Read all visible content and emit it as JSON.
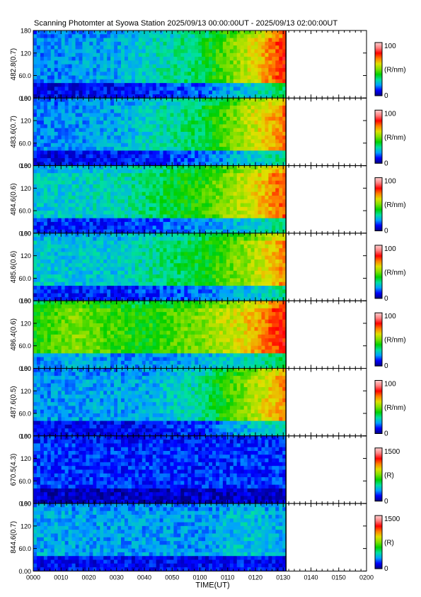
{
  "title": "Scanning Photomter at Syowa Station 2025/09/13 00:00:00UT - 2025/09/13 02:00:00UT",
  "chart_data": {
    "type": "heatmap",
    "xlabel": "TIME(UT)",
    "x_ticklabels": [
      "0000",
      "0010",
      "0020",
      "0030",
      "0040",
      "0050",
      "0100",
      "0110",
      "0120",
      "0130",
      "0140",
      "0150",
      "0200"
    ],
    "xlim_minutes": [
      0,
      120
    ],
    "data_end_minute": 91,
    "y_ticklabels": [
      "0.00",
      "60.0",
      "120",
      "180"
    ],
    "ylim": [
      0,
      180
    ],
    "colormap": [
      "#000080",
      "#0000ff",
      "#00a0ff",
      "#00e0a0",
      "#00d000",
      "#80e000",
      "#e0e000",
      "#ff8000",
      "#ff0000",
      "#ff8080",
      "#ffd0d0"
    ],
    "panels": [
      {
        "label": "482.8(0.7)",
        "unit": "(R/nm)",
        "cmax": "100",
        "cmin": "0",
        "intensity": [
          {
            "t": 0,
            "v": 0.18
          },
          {
            "t": 30,
            "v": 0.22
          },
          {
            "t": 60,
            "v": 0.35
          },
          {
            "t": 80,
            "v": 0.6
          },
          {
            "t": 91,
            "v": 0.8
          }
        ]
      },
      {
        "label": "483.6(0.7)",
        "unit": "(R/nm)",
        "cmax": "100",
        "cmin": "0",
        "intensity": [
          {
            "t": 0,
            "v": 0.18
          },
          {
            "t": 30,
            "v": 0.22
          },
          {
            "t": 60,
            "v": 0.35
          },
          {
            "t": 80,
            "v": 0.58
          },
          {
            "t": 91,
            "v": 0.72
          }
        ]
      },
      {
        "label": "484.6(0.6)",
        "unit": "(R/nm)",
        "cmax": "100",
        "cmin": "0",
        "intensity": [
          {
            "t": 0,
            "v": 0.25
          },
          {
            "t": 30,
            "v": 0.28
          },
          {
            "t": 60,
            "v": 0.42
          },
          {
            "t": 80,
            "v": 0.6
          },
          {
            "t": 91,
            "v": 0.75
          }
        ]
      },
      {
        "label": "485.6(0.6)",
        "unit": "(R/nm)",
        "cmax": "100",
        "cmin": "0",
        "intensity": [
          {
            "t": 0,
            "v": 0.25
          },
          {
            "t": 30,
            "v": 0.25
          },
          {
            "t": 60,
            "v": 0.38
          },
          {
            "t": 80,
            "v": 0.55
          },
          {
            "t": 91,
            "v": 0.7
          }
        ]
      },
      {
        "label": "486.4(0.6)",
        "unit": "(R/nm)",
        "cmax": "100",
        "cmin": "0",
        "intensity": [
          {
            "t": 0,
            "v": 0.4
          },
          {
            "t": 15,
            "v": 0.5
          },
          {
            "t": 40,
            "v": 0.4
          },
          {
            "t": 60,
            "v": 0.5
          },
          {
            "t": 75,
            "v": 0.6
          },
          {
            "t": 91,
            "v": 0.8
          }
        ]
      },
      {
        "label": "487.6(0.5)",
        "unit": "(R/nm)",
        "cmax": "100",
        "cmin": "0",
        "intensity": [
          {
            "t": 0,
            "v": 0.2
          },
          {
            "t": 40,
            "v": 0.22
          },
          {
            "t": 60,
            "v": 0.3
          },
          {
            "t": 80,
            "v": 0.55
          },
          {
            "t": 91,
            "v": 0.7
          }
        ]
      },
      {
        "label": "670.5(4.3)",
        "unit": "(R)",
        "cmax": "1500",
        "cmin": "0",
        "intensity": [
          {
            "t": 0,
            "v": 0.13
          },
          {
            "t": 60,
            "v": 0.12
          },
          {
            "t": 91,
            "v": 0.13
          }
        ]
      },
      {
        "label": "844.6(0.7)",
        "unit": "(R)",
        "cmax": "1500",
        "cmin": "0",
        "intensity": [
          {
            "t": 0,
            "v": 0.22
          },
          {
            "t": 60,
            "v": 0.2
          },
          {
            "t": 75,
            "v": 0.25
          },
          {
            "t": 91,
            "v": 0.22
          }
        ]
      }
    ]
  }
}
